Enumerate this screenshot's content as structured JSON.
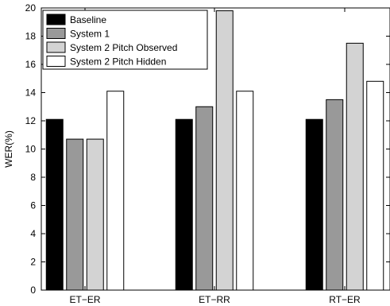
{
  "chart_data": {
    "type": "bar",
    "title": "",
    "xlabel": "",
    "ylabel": "WER(%)",
    "ylim": [
      0,
      20
    ],
    "yticks": [
      0,
      2,
      4,
      6,
      8,
      10,
      12,
      14,
      16,
      18,
      20
    ],
    "grid": false,
    "legend_position": "top-left",
    "categories": [
      "ET−ER",
      "ET−RR",
      "RT−ER"
    ],
    "series": [
      {
        "name": "Baseline",
        "color": "#000000",
        "values": [
          12.1,
          12.1,
          12.1
        ]
      },
      {
        "name": "System 1",
        "color": "#999999",
        "values": [
          10.7,
          13.0,
          13.5
        ]
      },
      {
        "name": "System 2 Pitch Observed",
        "color": "#d3d3d3",
        "values": [
          10.7,
          19.8,
          17.5
        ]
      },
      {
        "name": "System 2 Pitch Hidden",
        "color": "#ffffff",
        "values": [
          14.1,
          14.1,
          14.8
        ]
      }
    ]
  }
}
